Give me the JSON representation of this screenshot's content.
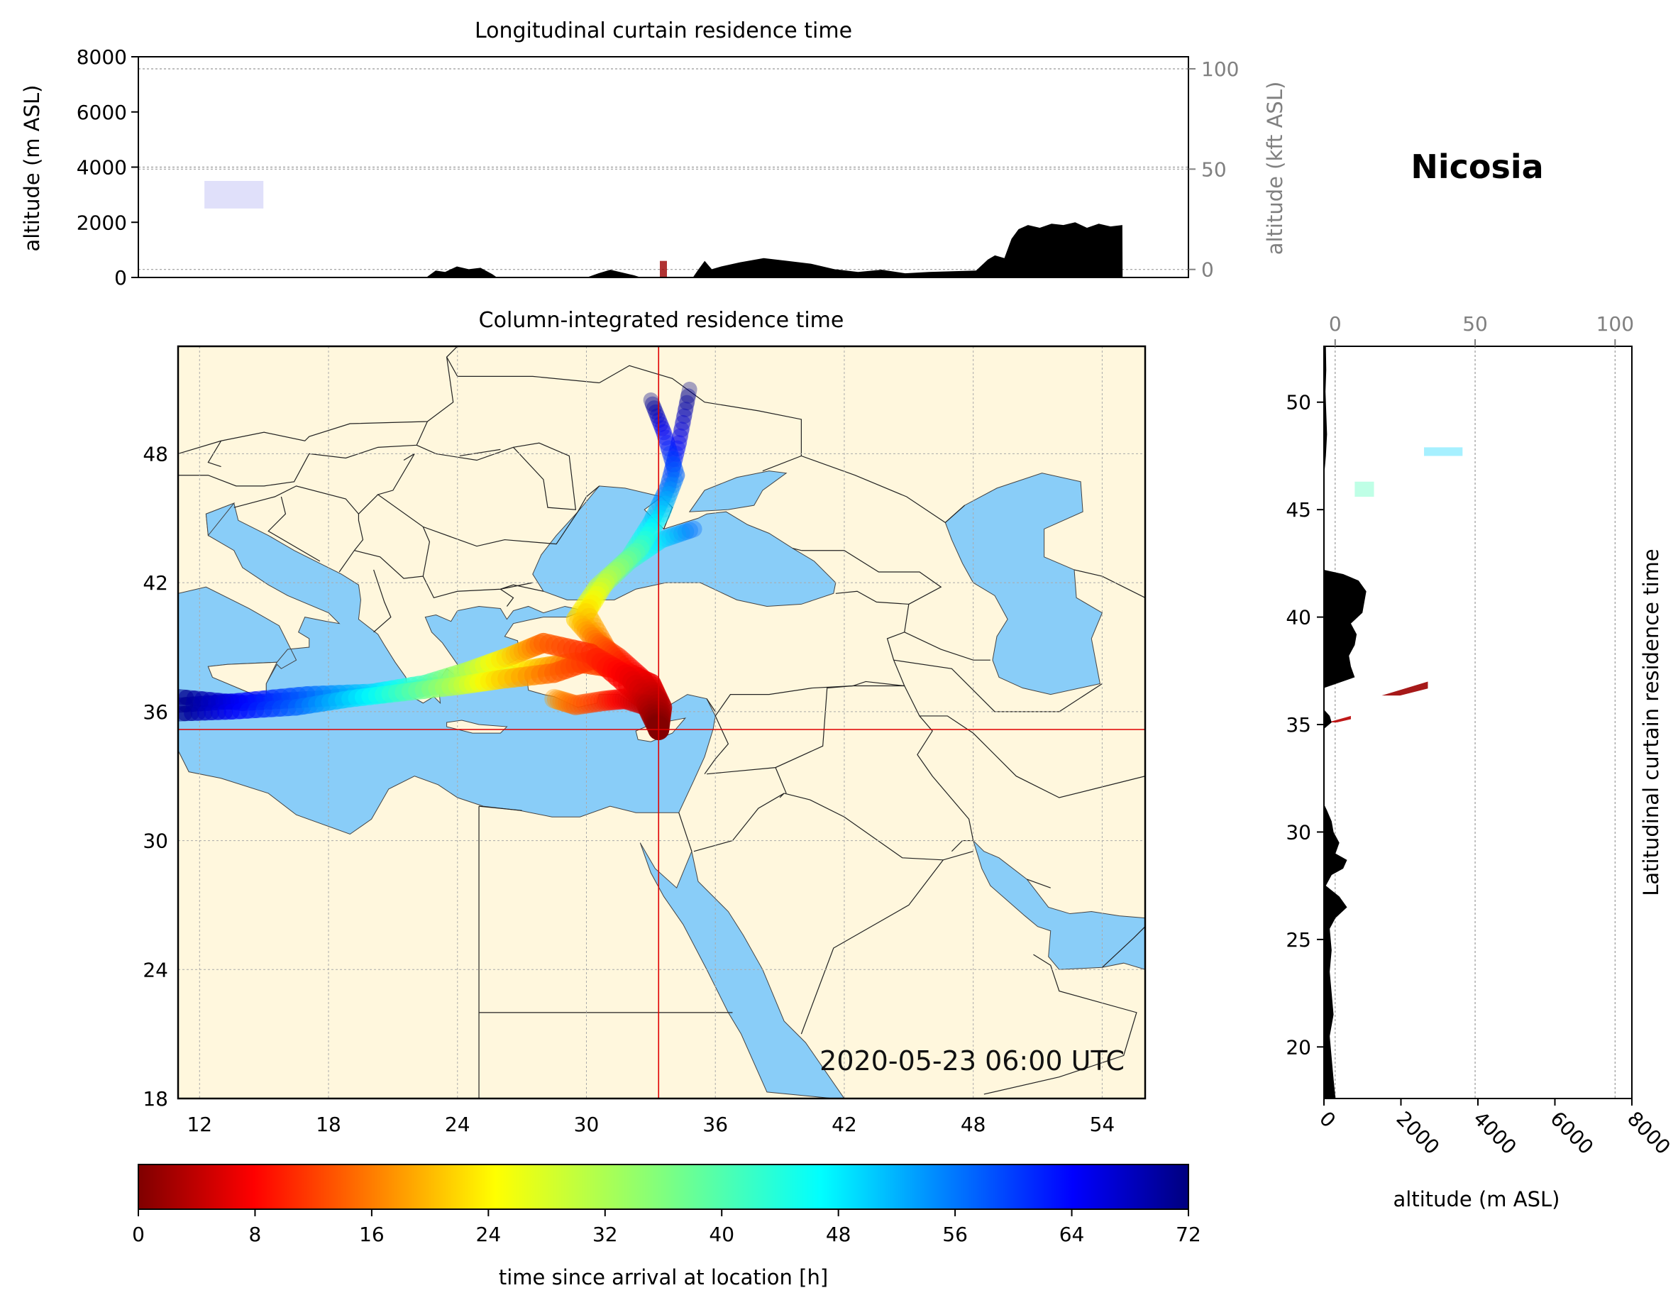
{
  "station": "Nicosia",
  "timestamp": "2020-05-23 06:00 UTC",
  "chart_data": [
    {
      "type": "area",
      "panel": "longitudinal-curtain",
      "title": "Longitudinal curtain residence time",
      "ylabel": "altitude (m ASL)",
      "ylabel_right": "altitude (kft ASL)",
      "ylim": [
        0,
        8000
      ],
      "yticks": [
        0,
        2000,
        4000,
        6000,
        8000
      ],
      "ylim_right": [
        -4,
        106
      ],
      "yticks_right": [
        0,
        50,
        100
      ],
      "xlim": [
        11,
        55.5
      ],
      "grid": true,
      "terrain": {
        "lon": [
          11,
          23.2,
          23.6,
          24.0,
          24.5,
          25.0,
          25.5,
          26.0,
          26.2,
          30.0,
          30.5,
          31.0,
          31.5,
          32.0,
          32.3,
          34.5,
          34.7,
          35.0,
          35.3,
          35.7,
          36.5,
          37.5,
          38.5,
          39.5,
          40.5,
          41.5,
          42.5,
          43.5,
          44.5,
          46.5,
          47.0,
          47.3,
          47.7,
          48.0,
          48.3,
          48.7,
          49.2,
          49.7,
          50.2,
          50.7,
          51.2,
          51.7,
          52.2,
          52.7,
          52.71,
          55.5
        ],
        "elev": [
          0,
          0,
          250,
          200,
          400,
          300,
          350,
          120,
          0,
          0,
          150,
          280,
          180,
          80,
          0,
          0,
          250,
          600,
          300,
          400,
          550,
          700,
          600,
          500,
          300,
          200,
          280,
          150,
          200,
          250,
          650,
          800,
          700,
          1400,
          1750,
          1900,
          1800,
          1950,
          1900,
          2000,
          1800,
          1950,
          1850,
          1900,
          0,
          0
        ]
      },
      "plumes": [
        {
          "lon": [
            13.8,
            16.3
          ],
          "alt": [
            2500,
            3500
          ],
          "time_h": 66
        },
        {
          "lon": [
            33.1,
            33.4
          ],
          "alt": [
            0,
            600
          ],
          "time_h": 2
        }
      ]
    },
    {
      "type": "heatmap",
      "panel": "column-integrated-map",
      "title": "Column-integrated residence time",
      "xlim": [
        11,
        56
      ],
      "ylim": [
        18,
        53
      ],
      "xticks": [
        12,
        18,
        24,
        30,
        36,
        42,
        48,
        54
      ],
      "yticks": [
        18,
        24,
        30,
        36,
        42,
        48
      ],
      "grid": true,
      "release_point": {
        "lon": 33.36,
        "lat": 35.17
      },
      "trajectories": [
        {
          "time_h": [
            0,
            4,
            8,
            12,
            16,
            24,
            32,
            40,
            48,
            56,
            64,
            72
          ],
          "lon": [
            33.36,
            33.5,
            33.0,
            31.5,
            29.5,
            27.5,
            25.5,
            23.0,
            20.5,
            17.5,
            14.0,
            11.0
          ],
          "lat": [
            35.17,
            36.2,
            37.3,
            38.0,
            38.3,
            38.0,
            37.6,
            37.2,
            36.8,
            36.6,
            36.4,
            36.7
          ]
        },
        {
          "time_h": [
            0,
            4,
            8,
            12,
            16,
            24,
            32,
            40,
            48,
            56,
            64,
            72
          ],
          "lon": [
            33.36,
            33.4,
            32.2,
            30.2,
            28.0,
            26.5,
            24.5,
            22.5,
            20.0,
            17.0,
            13.8,
            11.0
          ],
          "lat": [
            35.17,
            35.9,
            37.0,
            38.7,
            39.2,
            38.6,
            37.9,
            37.3,
            36.9,
            36.8,
            36.5,
            36.3
          ]
        },
        {
          "time_h": [
            0,
            4,
            8,
            12,
            16,
            24,
            32,
            40,
            48,
            56,
            64,
            72
          ],
          "lon": [
            33.36,
            33.2,
            32.0,
            30.5,
            28.5,
            26.0,
            24.0,
            21.5,
            19.0,
            16.5,
            13.5,
            11.0
          ],
          "lat": [
            35.17,
            36.1,
            37.6,
            38.5,
            37.8,
            37.5,
            37.2,
            36.9,
            36.6,
            36.2,
            36.0,
            35.9
          ]
        },
        {
          "time_h": [
            0,
            4,
            8,
            12,
            16,
            24,
            32,
            40,
            48,
            56,
            64,
            72
          ],
          "lon": [
            33.36,
            33.3,
            32.5,
            31.5,
            30.5,
            29.5,
            30.5,
            32.0,
            33.0,
            33.8,
            34.3,
            34.8
          ],
          "lat": [
            35.17,
            36.5,
            37.6,
            38.5,
            39.2,
            40.3,
            41.8,
            43.2,
            44.8,
            46.5,
            48.5,
            51.0
          ]
        },
        {
          "time_h": [
            0,
            8,
            16,
            24,
            32,
            40,
            48,
            56,
            64,
            72
          ],
          "lon": [
            33.36,
            32.5,
            31.0,
            30.0,
            31.0,
            32.5,
            33.5,
            34.2,
            33.6,
            33.0
          ],
          "lat": [
            35.17,
            37.0,
            38.8,
            40.6,
            42.2,
            43.6,
            45.2,
            47.0,
            49.0,
            50.5
          ]
        },
        {
          "time_h": [
            0,
            8,
            16,
            24,
            32,
            40,
            48,
            56
          ],
          "lon": [
            33.36,
            32.8,
            31.2,
            29.8,
            30.5,
            32.0,
            33.5,
            35.0
          ],
          "lat": [
            35.17,
            36.8,
            38.6,
            40.2,
            41.6,
            43.0,
            44.0,
            44.5
          ]
        },
        {
          "time_h": [
            0,
            4,
            8,
            12,
            16,
            20
          ],
          "lon": [
            33.36,
            32.8,
            31.8,
            30.8,
            29.5,
            28.5
          ],
          "lat": [
            35.17,
            36.3,
            36.6,
            36.5,
            36.3,
            36.6
          ]
        }
      ]
    },
    {
      "type": "area",
      "panel": "latitudinal-curtain",
      "title": "Latitudinal curtain residence time",
      "xlabel": "altitude (m ASL)",
      "xlim": [
        0,
        8000
      ],
      "xticks": [
        0,
        2000,
        4000,
        6000,
        8000
      ],
      "xlim_top": [
        -4,
        106
      ],
      "xticks_top": [
        0,
        50,
        100
      ],
      "ylim": [
        17.6,
        52.6
      ],
      "yticks": [
        20,
        25,
        30,
        35,
        40,
        45,
        50
      ],
      "grid": true,
      "terrain": {
        "lat": [
          17.6,
          18.5,
          19.5,
          20.5,
          21.5,
          22.5,
          23.5,
          24.5,
          25.5,
          26.0,
          26.5,
          27.0,
          27.5,
          28.0,
          28.3,
          28.7,
          29.0,
          29.5,
          30.0,
          30.5,
          31.0,
          31.3,
          34.8,
          35.1,
          35.4,
          35.7,
          36.7,
          37.2,
          37.7,
          38.2,
          38.7,
          39.2,
          39.7,
          40.2,
          40.7,
          41.2,
          41.7,
          42.0,
          42.2,
          46.5,
          47.5,
          48.5,
          49.5,
          50.5,
          51.5,
          52.6
        ],
        "elev": [
          300,
          250,
          200,
          150,
          250,
          200,
          150,
          200,
          150,
          300,
          600,
          400,
          50,
          200,
          500,
          600,
          300,
          400,
          250,
          200,
          80,
          0,
          0,
          200,
          150,
          0,
          0,
          800,
          700,
          650,
          800,
          850,
          700,
          1000,
          1050,
          1100,
          900,
          500,
          0,
          0,
          50,
          80,
          60,
          40,
          60,
          50
        ]
      },
      "plumes": [
        {
          "lat": [
            36.35,
            37.0
          ],
          "alt": [
            1500,
            2700
          ],
          "time_h": 2
        },
        {
          "lat": [
            35.1,
            35.4
          ],
          "alt": [
            100,
            700
          ],
          "time_h": 4
        },
        {
          "lat": [
            45.6,
            46.3
          ],
          "alt": [
            800,
            1300
          ],
          "time_h": 40
        },
        {
          "lat": [
            47.5,
            47.9
          ],
          "alt": [
            2600,
            3600
          ],
          "time_h": 48
        }
      ]
    },
    {
      "type": "colorbar",
      "panel": "colorbar",
      "label": "time since arrival at location [h]",
      "range": [
        0,
        72
      ],
      "ticks": [
        0,
        8,
        16,
        24,
        32,
        40,
        48,
        56,
        64,
        72
      ],
      "colormap": "jet_r"
    }
  ]
}
